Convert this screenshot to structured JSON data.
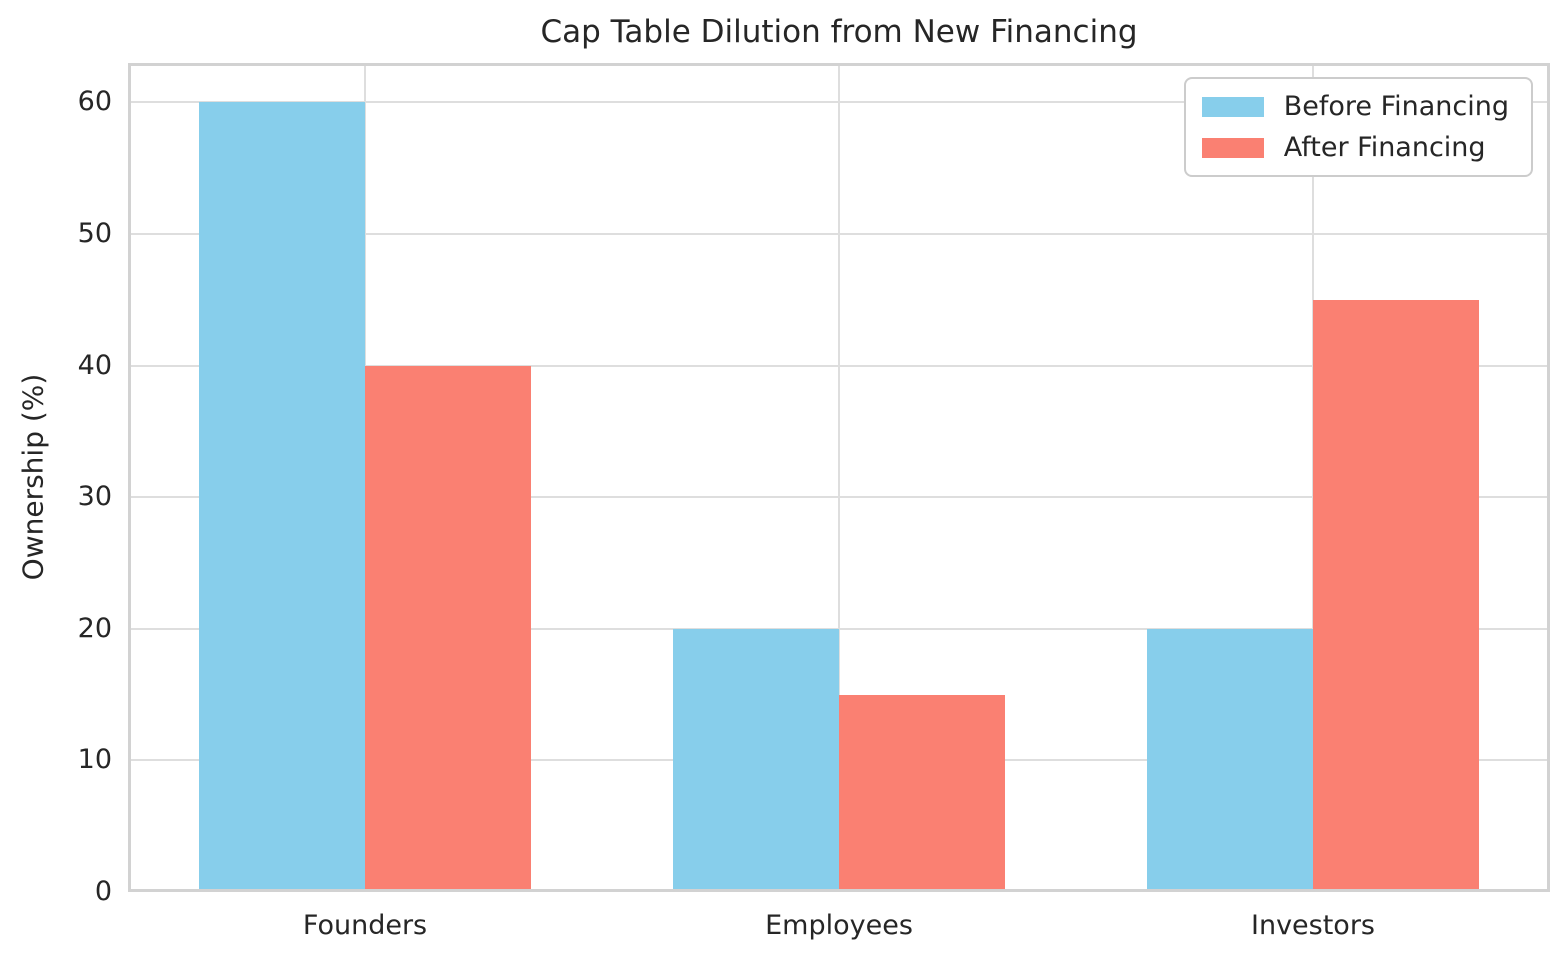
{
  "chart_data": {
    "type": "bar",
    "title": "Cap Table Dilution from New Financing",
    "xlabel": "",
    "ylabel": "Ownership (%)",
    "categories": [
      "Founders",
      "Employees",
      "Investors"
    ],
    "series": [
      {
        "name": "Before Financing",
        "color": "#87CEEB",
        "values": [
          60,
          20,
          20
        ]
      },
      {
        "name": "After Financing",
        "color": "#FA8072",
        "values": [
          40,
          15,
          45
        ]
      }
    ],
    "yticks": [
      0,
      10,
      20,
      30,
      40,
      50,
      60
    ],
    "ylim": [
      0,
      63
    ],
    "grid": true,
    "grid_color": "#dedede",
    "spine_color": "#d2d2d2",
    "text_color": "#262626",
    "legend_position": "upper right",
    "bar_width_fraction": 0.35
  }
}
